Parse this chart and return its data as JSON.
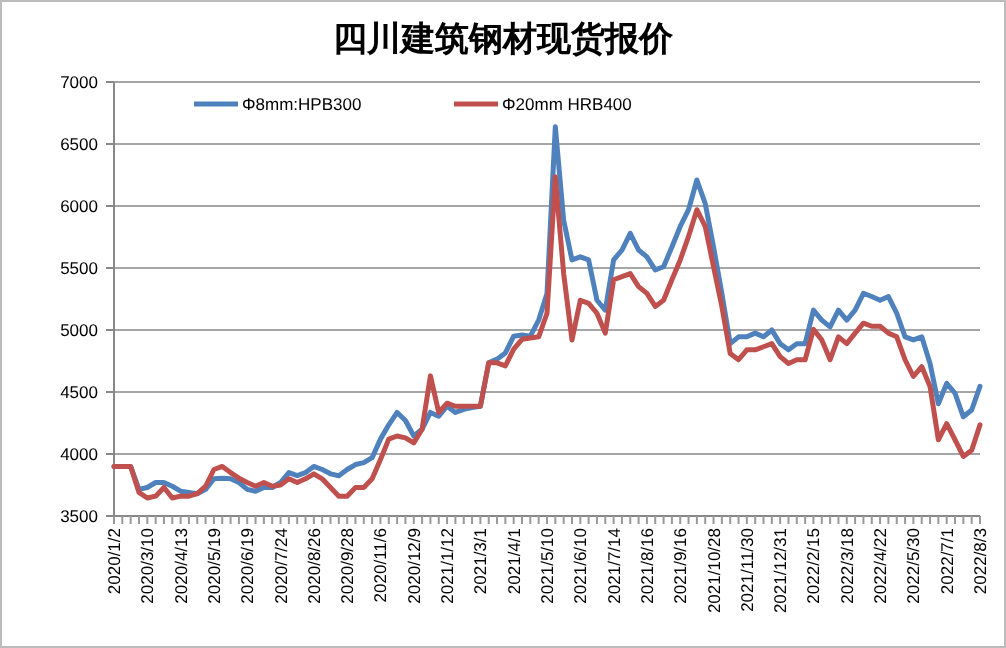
{
  "chart_data": {
    "type": "line",
    "title": "四川建筑钢材现货报价",
    "categories": [
      "2020/1/2",
      null,
      null,
      null,
      "2020/3/10",
      null,
      null,
      null,
      "2020/4/13",
      null,
      null,
      null,
      "2020/5/19",
      null,
      null,
      null,
      "2020/6/19",
      null,
      null,
      null,
      "2020/7/24",
      null,
      null,
      null,
      "2020/8/26",
      null,
      null,
      null,
      "2020/9/28",
      null,
      null,
      null,
      "2020/11/6",
      null,
      null,
      null,
      "2020/12/9",
      null,
      null,
      null,
      "2021/1/12",
      null,
      null,
      null,
      "2021/3/1",
      null,
      null,
      null,
      "2021/4/1",
      null,
      null,
      null,
      "2021/5/10",
      null,
      null,
      null,
      "2021/6/10",
      null,
      null,
      null,
      "2021/7/14",
      null,
      null,
      null,
      "2021/8/16",
      null,
      null,
      null,
      "2021/9/16",
      null,
      null,
      null,
      "2021/10/28",
      null,
      null,
      null,
      "2021/11/30",
      null,
      null,
      null,
      "2021/12/31",
      null,
      null,
      null,
      "2022/2/15",
      null,
      null,
      null,
      "2022/3/18",
      null,
      null,
      null,
      "2022/4/22",
      null,
      null,
      null,
      "2022/5/30",
      null,
      null,
      null,
      "2022/7/1",
      null,
      null,
      null,
      "2022/8/3"
    ],
    "series": [
      {
        "name": "Φ8mm:HPB300",
        "color": "#4f81bd",
        "values": [
          3900,
          3900,
          3900,
          3715,
          3730,
          3770,
          3770,
          3740,
          3700,
          3690,
          3680,
          3715,
          3800,
          3805,
          3800,
          3770,
          3715,
          3700,
          3730,
          3730,
          3770,
          3850,
          3825,
          3850,
          3900,
          3875,
          3840,
          3825,
          3875,
          3915,
          3930,
          3970,
          4120,
          4235,
          4335,
          4270,
          4145,
          4200,
          4335,
          4305,
          4385,
          4335,
          4360,
          4375,
          4385,
          4735,
          4765,
          4815,
          4950,
          4960,
          4950,
          5080,
          5295,
          6640,
          5885,
          5565,
          5590,
          5565,
          5240,
          5160,
          5565,
          5645,
          5780,
          5645,
          5590,
          5485,
          5510,
          5670,
          5835,
          5970,
          6210,
          6020,
          5670,
          5295,
          4890,
          4945,
          4945,
          4975,
          4945,
          5000,
          4890,
          4840,
          4890,
          4890,
          5160,
          5080,
          5025,
          5160,
          5080,
          5160,
          5295,
          5270,
          5240,
          5270,
          5135,
          4945,
          4920,
          4945,
          4730,
          4405,
          4570,
          4490,
          4300,
          4355,
          4545
        ]
      },
      {
        "name": "Φ20mm HRB400",
        "color": "#c0504d",
        "values": [
          3900,
          3900,
          3900,
          3690,
          3645,
          3660,
          3730,
          3645,
          3660,
          3660,
          3680,
          3740,
          3875,
          3900,
          3850,
          3805,
          3770,
          3740,
          3770,
          3740,
          3750,
          3800,
          3770,
          3800,
          3840,
          3800,
          3730,
          3660,
          3660,
          3730,
          3730,
          3800,
          3955,
          4120,
          4145,
          4130,
          4090,
          4200,
          4630,
          4335,
          4410,
          4385,
          4385,
          4385,
          4385,
          4735,
          4735,
          4710,
          4845,
          4925,
          4935,
          4945,
          5135,
          6235,
          5455,
          4920,
          5240,
          5215,
          5135,
          4975,
          5405,
          5430,
          5455,
          5350,
          5295,
          5190,
          5240,
          5405,
          5565,
          5755,
          5970,
          5835,
          5510,
          5190,
          4810,
          4760,
          4840,
          4840,
          4865,
          4890,
          4785,
          4730,
          4760,
          4760,
          5005,
          4920,
          4760,
          4945,
          4890,
          4975,
          5055,
          5030,
          5030,
          4975,
          4945,
          4760,
          4625,
          4705,
          4545,
          4115,
          4245,
          4115,
          3980,
          4030,
          4235
        ]
      }
    ],
    "ylim": [
      3500,
      7000
    ],
    "yticks": [
      3500,
      4000,
      4500,
      5000,
      5500,
      6000,
      6500,
      7000
    ],
    "grid": "y",
    "legend": "top",
    "line_style": "solid"
  }
}
